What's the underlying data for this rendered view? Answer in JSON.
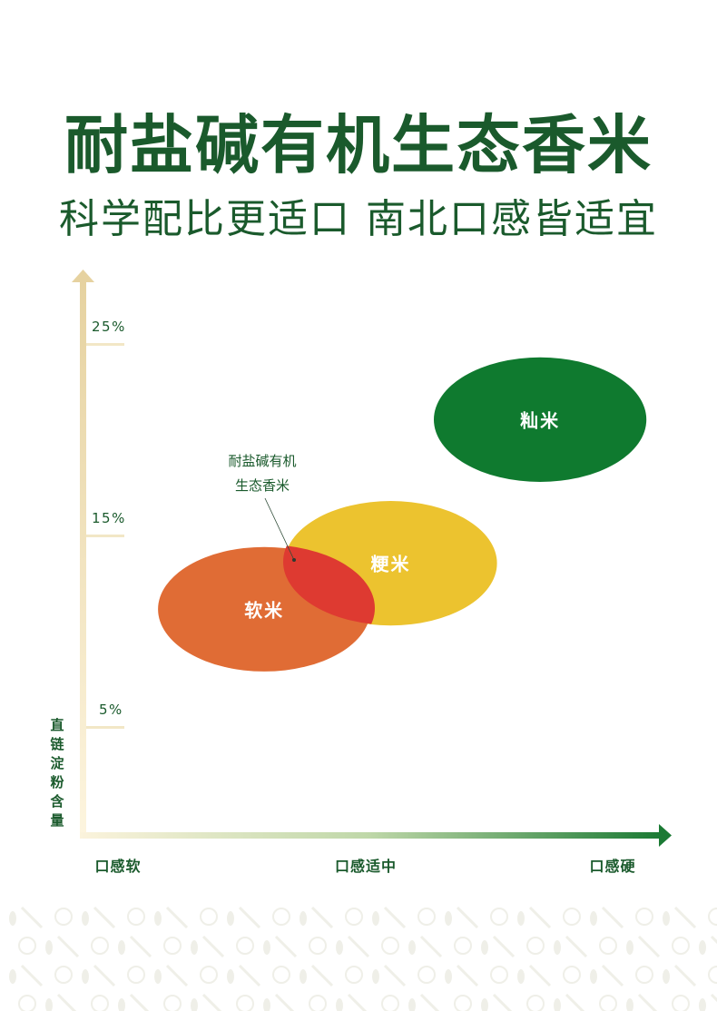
{
  "header": {
    "title": "耐盐碱有机生态香米",
    "subtitle": "科学配比更适口 南北口感皆适宜"
  },
  "colors": {
    "title_green": "#1a5a2c",
    "axis_y_top": "#e6d2a0",
    "axis_x_end": "#1b7a34",
    "glutinous": "#0f7a2f",
    "japonica": "#ecc32f",
    "soft": "#e06c35",
    "overlap": "#de3a31",
    "pattern": "#efefe8"
  },
  "chart_data": {
    "type": "scatter",
    "y_axis": {
      "label": "直链淀粉含量",
      "ticks": [
        "25%",
        "15%",
        "5%"
      ],
      "tick_values": [
        25,
        15,
        5
      ]
    },
    "x_axis": {
      "ticks": [
        "口感软",
        "口感适中",
        "口感硬"
      ]
    },
    "series": [
      {
        "name": "籼米",
        "x_center": 0.79,
        "y_center": 21,
        "x_width": 0.37,
        "y_height": 6.5,
        "color": "#0f7a2f"
      },
      {
        "name": "粳米",
        "x_center": 0.53,
        "y_center": 13.5,
        "x_width": 0.37,
        "y_height": 6.5,
        "color": "#ecc32f"
      },
      {
        "name": "软米",
        "x_center": 0.31,
        "y_center": 11.1,
        "x_width": 0.37,
        "y_height": 6.5,
        "color": "#e06c35"
      }
    ],
    "annotation": {
      "lines": [
        "耐盐碱有机",
        "生态香米"
      ],
      "points_to": "overlap of 软米 and 粳米"
    }
  }
}
